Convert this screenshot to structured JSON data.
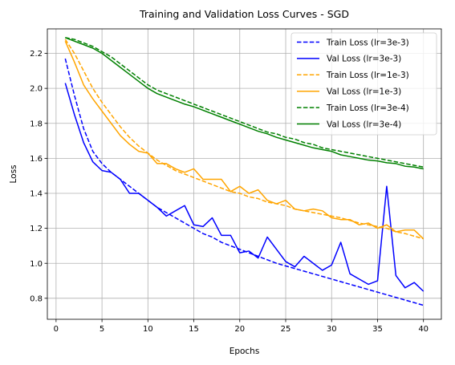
{
  "chart_data": {
    "type": "line",
    "title": "Training and Validation Loss Curves - SGD",
    "xlabel": "Epochs",
    "ylabel": "Loss",
    "xlim": [
      -0.95,
      41.95
    ],
    "ylim": [
      0.68,
      2.34
    ],
    "xticks": [
      0,
      5,
      10,
      15,
      20,
      25,
      30,
      35,
      40
    ],
    "yticks": [
      0.8,
      1.0,
      1.2,
      1.4,
      1.6,
      1.8,
      2.0,
      2.2
    ],
    "grid": true,
    "legend_position": "upper right",
    "x": [
      1,
      2,
      3,
      4,
      5,
      6,
      7,
      8,
      9,
      10,
      11,
      12,
      13,
      14,
      15,
      16,
      17,
      18,
      19,
      20,
      21,
      22,
      23,
      24,
      25,
      26,
      27,
      28,
      29,
      30,
      31,
      32,
      33,
      34,
      35,
      36,
      37,
      38,
      39,
      40
    ],
    "series": [
      {
        "name": "Train Loss (lr=3e-3)",
        "color": "#0000ff",
        "style": "dashed",
        "values": [
          2.17,
          1.96,
          1.77,
          1.64,
          1.57,
          1.52,
          1.48,
          1.44,
          1.4,
          1.36,
          1.32,
          1.29,
          1.26,
          1.23,
          1.2,
          1.17,
          1.15,
          1.12,
          1.1,
          1.08,
          1.06,
          1.04,
          1.02,
          1.0,
          0.985,
          0.97,
          0.955,
          0.94,
          0.925,
          0.91,
          0.895,
          0.88,
          0.865,
          0.85,
          0.835,
          0.82,
          0.805,
          0.79,
          0.775,
          0.76
        ]
      },
      {
        "name": "Val Loss (lr=3e-3)",
        "color": "#0000ff",
        "style": "solid",
        "values": [
          2.03,
          1.85,
          1.69,
          1.58,
          1.53,
          1.52,
          1.48,
          1.4,
          1.4,
          1.36,
          1.32,
          1.27,
          1.3,
          1.33,
          1.22,
          1.21,
          1.26,
          1.16,
          1.16,
          1.06,
          1.07,
          1.03,
          1.15,
          1.08,
          1.01,
          0.98,
          1.04,
          1.0,
          0.96,
          0.99,
          1.12,
          0.94,
          0.91,
          0.88,
          0.9,
          1.44,
          0.93,
          0.86,
          0.89,
          0.84
        ]
      },
      {
        "name": "Train Loss (lr=1e-3)",
        "color": "#ffa500",
        "style": "dashed",
        "values": [
          2.28,
          2.2,
          2.1,
          2.0,
          1.92,
          1.85,
          1.78,
          1.72,
          1.67,
          1.63,
          1.59,
          1.56,
          1.53,
          1.51,
          1.49,
          1.47,
          1.45,
          1.43,
          1.41,
          1.4,
          1.38,
          1.37,
          1.35,
          1.34,
          1.33,
          1.31,
          1.3,
          1.29,
          1.28,
          1.27,
          1.26,
          1.245,
          1.23,
          1.22,
          1.21,
          1.2,
          1.18,
          1.17,
          1.155,
          1.14
        ]
      },
      {
        "name": "Val Loss (lr=1e-3)",
        "color": "#ffa500",
        "style": "solid",
        "values": [
          2.27,
          2.15,
          2.02,
          1.94,
          1.87,
          1.8,
          1.73,
          1.68,
          1.64,
          1.63,
          1.57,
          1.57,
          1.54,
          1.52,
          1.54,
          1.48,
          1.48,
          1.48,
          1.41,
          1.44,
          1.4,
          1.42,
          1.36,
          1.34,
          1.36,
          1.31,
          1.3,
          1.31,
          1.3,
          1.26,
          1.25,
          1.25,
          1.22,
          1.23,
          1.2,
          1.22,
          1.18,
          1.19,
          1.19,
          1.14
        ]
      },
      {
        "name": "Train Loss (lr=3e-4)",
        "color": "#008000",
        "style": "dashed",
        "values": [
          2.29,
          2.28,
          2.26,
          2.24,
          2.21,
          2.18,
          2.14,
          2.1,
          2.06,
          2.02,
          1.99,
          1.97,
          1.95,
          1.93,
          1.91,
          1.89,
          1.87,
          1.85,
          1.83,
          1.81,
          1.79,
          1.77,
          1.75,
          1.74,
          1.72,
          1.71,
          1.69,
          1.68,
          1.66,
          1.65,
          1.64,
          1.63,
          1.62,
          1.61,
          1.6,
          1.59,
          1.58,
          1.57,
          1.56,
          1.55
        ]
      },
      {
        "name": "Val Loss (lr=3e-4)",
        "color": "#008000",
        "style": "solid",
        "values": [
          2.29,
          2.27,
          2.25,
          2.23,
          2.2,
          2.16,
          2.12,
          2.08,
          2.04,
          2.0,
          1.97,
          1.95,
          1.93,
          1.91,
          1.895,
          1.875,
          1.855,
          1.835,
          1.815,
          1.795,
          1.775,
          1.755,
          1.74,
          1.72,
          1.705,
          1.69,
          1.675,
          1.66,
          1.65,
          1.64,
          1.62,
          1.61,
          1.6,
          1.59,
          1.585,
          1.575,
          1.57,
          1.555,
          1.55,
          1.54
        ]
      }
    ]
  }
}
